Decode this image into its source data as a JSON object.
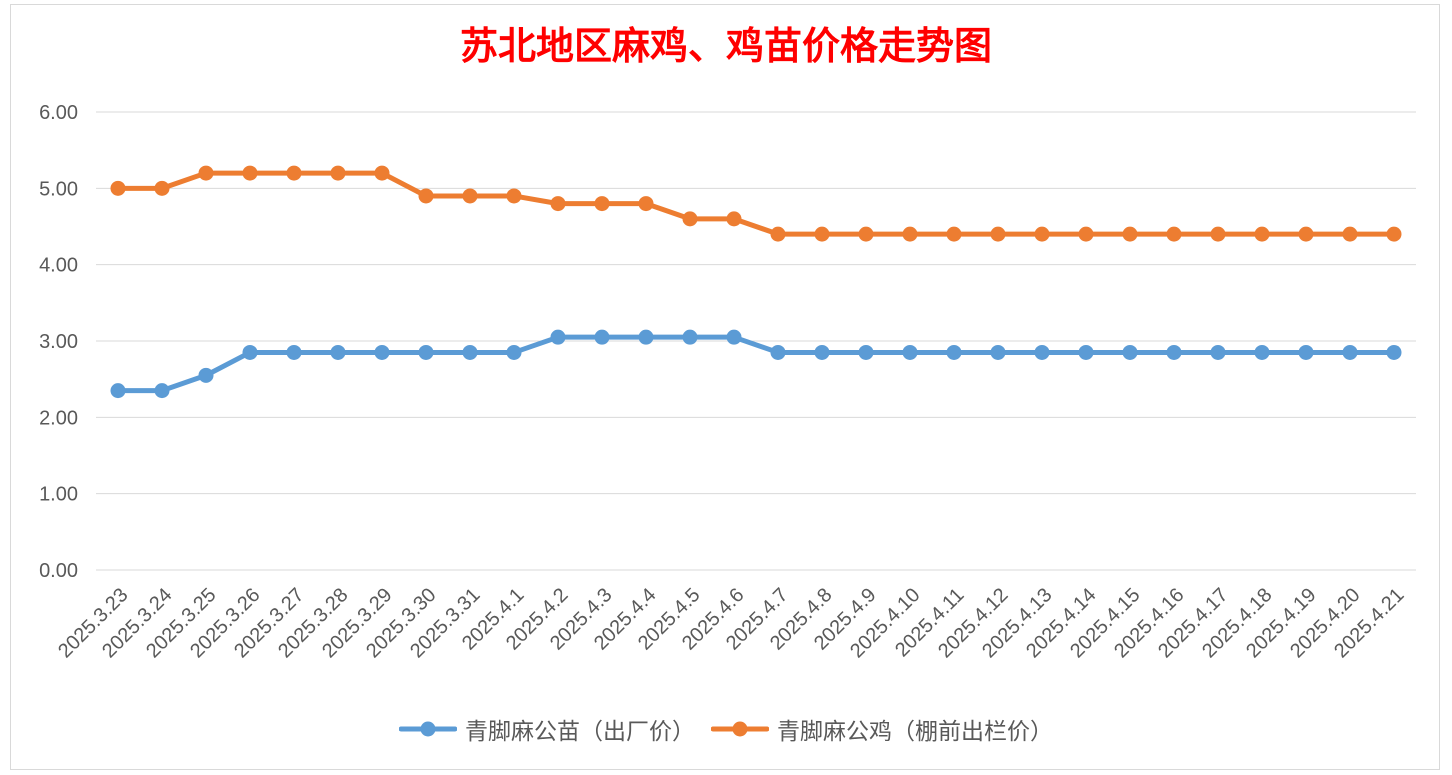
{
  "chart_data": {
    "type": "line",
    "title": "苏北地区麻鸡、鸡苗价格走势图",
    "title_color": "#FF0000",
    "xlabel": "",
    "ylabel": "",
    "categories": [
      "2025.3.23",
      "2025.3.24",
      "2025.3.25",
      "2025.3.26",
      "2025.3.27",
      "2025.3.28",
      "2025.3.29",
      "2025.3.30",
      "2025.3.31",
      "2025.4.1",
      "2025.4.2",
      "2025.4.3",
      "2025.4.4",
      "2025.4.5",
      "2025.4.6",
      "2025.4.7",
      "2025.4.8",
      "2025.4.9",
      "2025.4.10",
      "2025.4.11",
      "2025.4.12",
      "2025.4.13",
      "2025.4.14",
      "2025.4.15",
      "2025.4.16",
      "2025.4.17",
      "2025.4.18",
      "2025.4.19",
      "2025.4.20",
      "2025.4.21"
    ],
    "series": [
      {
        "name": "青脚麻公苗（出厂价）",
        "color": "#5B9BD5",
        "values": [
          2.35,
          2.35,
          2.55,
          2.85,
          2.85,
          2.85,
          2.85,
          2.85,
          2.85,
          2.85,
          3.05,
          3.05,
          3.05,
          3.05,
          3.05,
          2.85,
          2.85,
          2.85,
          2.85,
          2.85,
          2.85,
          2.85,
          2.85,
          2.85,
          2.85,
          2.85,
          2.85,
          2.85,
          2.85,
          2.85
        ]
      },
      {
        "name": "青脚麻公鸡（棚前出栏价）",
        "color": "#ED7D31",
        "values": [
          5.0,
          5.0,
          5.2,
          5.2,
          5.2,
          5.2,
          5.2,
          4.9,
          4.9,
          4.9,
          4.8,
          4.8,
          4.8,
          4.6,
          4.6,
          4.4,
          4.4,
          4.4,
          4.4,
          4.4,
          4.4,
          4.4,
          4.4,
          4.4,
          4.4,
          4.4,
          4.4,
          4.4,
          4.4,
          4.4
        ]
      }
    ],
    "yticks": [
      "0.00",
      "1.00",
      "2.00",
      "3.00",
      "4.00",
      "5.00",
      "6.00"
    ],
    "ylim": [
      0,
      6
    ],
    "grid": true,
    "legend": "bottom",
    "marker": "circle"
  }
}
